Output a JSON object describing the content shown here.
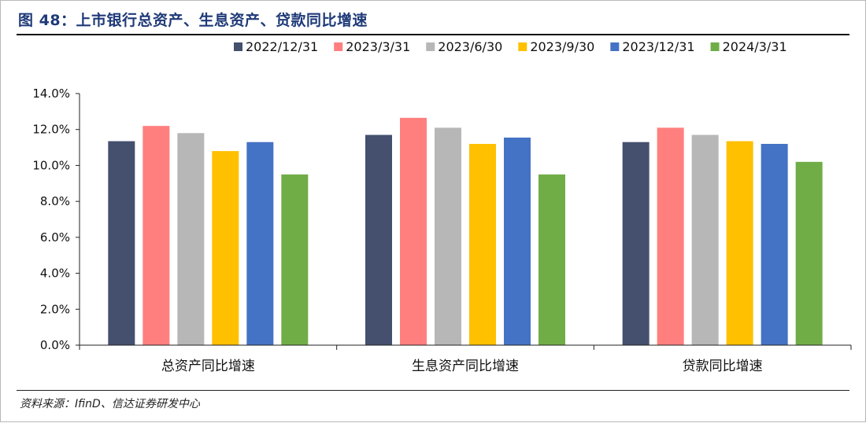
{
  "figure": {
    "title": "图 48：上市银行总资产、生息资产、贷款同比增速",
    "source": "资料来源：IfinD、信达证券研发中心"
  },
  "chart_data": {
    "type": "bar",
    "title": "",
    "xlabel": "",
    "ylabel": "",
    "categories": [
      "总资产同比增速",
      "生息资产同比增速",
      "贷款同比增速"
    ],
    "ylim": [
      0,
      14
    ],
    "ytick_step": 2,
    "yticks": [
      "0.0%",
      "2.0%",
      "4.0%",
      "6.0%",
      "8.0%",
      "10.0%",
      "12.0%",
      "14.0%"
    ],
    "value_unit": "%",
    "legend_position": "top-right",
    "grid": false,
    "series": [
      {
        "name": "2022/12/31",
        "color": "#44506e",
        "values": [
          11.35,
          11.7,
          11.3
        ]
      },
      {
        "name": "2023/3/31",
        "color": "#ff7f7f",
        "values": [
          12.2,
          12.65,
          12.1
        ]
      },
      {
        "name": "2023/6/30",
        "color": "#b7b7b7",
        "values": [
          11.8,
          12.1,
          11.7
        ]
      },
      {
        "name": "2023/9/30",
        "color": "#ffc000",
        "values": [
          10.8,
          11.2,
          11.35
        ]
      },
      {
        "name": "2023/12/31",
        "color": "#4472c4",
        "values": [
          11.3,
          11.55,
          11.2
        ]
      },
      {
        "name": "2024/3/31",
        "color": "#70ad47",
        "values": [
          9.5,
          9.5,
          10.2
        ]
      }
    ]
  }
}
